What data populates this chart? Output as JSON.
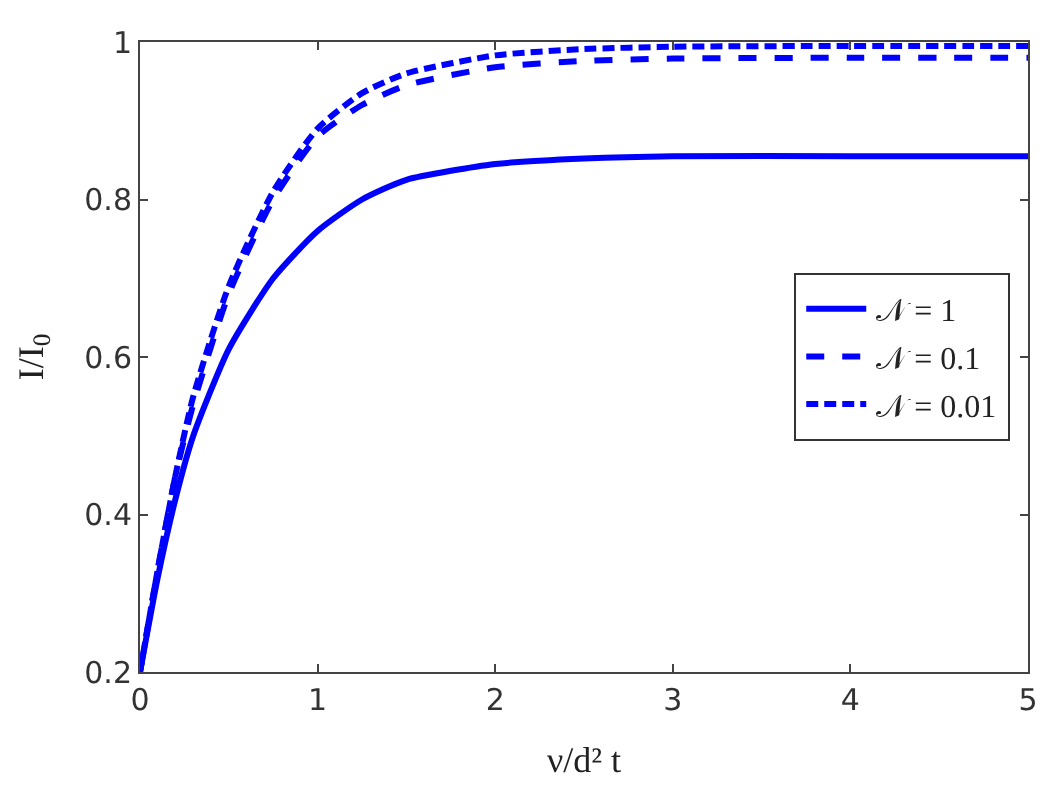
{
  "chart_data": {
    "type": "line",
    "xlabel": "ν/d² t",
    "ylabel": "I/I$_{0}$",
    "x": [
      0,
      0.1,
      0.2,
      0.3,
      0.5,
      0.75,
      1,
      1.25,
      1.5,
      2,
      2.5,
      3,
      4,
      5
    ],
    "series": [
      {
        "name": "𝒩 = 1",
        "color": "#0000ff",
        "line_style": "solid",
        "values": [
          0.2,
          0.32,
          0.42,
          0.5,
          0.61,
          0.7,
          0.76,
          0.8,
          0.825,
          0.845,
          0.852,
          0.855,
          0.855,
          0.855
        ]
      },
      {
        "name": "𝒩 = 0.1",
        "color": "#0000ff",
        "line_style": "dashed",
        "values": [
          0.2,
          0.33,
          0.45,
          0.54,
          0.68,
          0.8,
          0.88,
          0.92,
          0.945,
          0.968,
          0.976,
          0.979,
          0.98,
          0.98
        ]
      },
      {
        "name": "𝒩 = 0.01",
        "color": "#0000ff",
        "line_style": "dotted",
        "values": [
          0.2,
          0.33,
          0.45,
          0.55,
          0.69,
          0.81,
          0.89,
          0.935,
          0.96,
          0.983,
          0.991,
          0.994,
          0.995,
          0.995
        ]
      }
    ],
    "xlim": [
      0,
      5
    ],
    "xticks": [
      0,
      1,
      2,
      3,
      4,
      5
    ],
    "ylim": [
      0.2,
      1
    ],
    "yticks": [
      0.2,
      0.4,
      0.6,
      0.8,
      1
    ],
    "legend": "right",
    "marker": "none"
  }
}
